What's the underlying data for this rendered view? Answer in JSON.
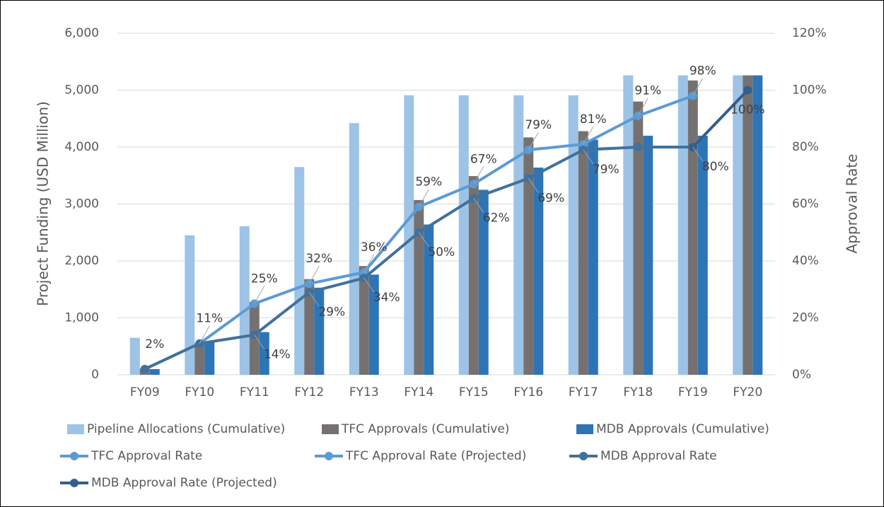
{
  "chart_data": {
    "type": "bar",
    "y_label": "Project Funding (USD Million)",
    "y2_label": "Approval Rate",
    "categories": [
      "FY09",
      "FY10",
      "FY11",
      "FY12",
      "FY13",
      "FY14",
      "FY15",
      "FY16",
      "FY17",
      "FY18",
      "FY19",
      "FY20"
    ],
    "ylim": [
      0,
      6000
    ],
    "yticks": [
      0,
      {
        "value": 1000,
        "label": "1,000"
      },
      {
        "value": 2000,
        "label": "2,000"
      },
      {
        "value": 3000,
        "label": "3,000"
      },
      {
        "value": 4000,
        "label": "4,000"
      },
      {
        "value": 5000,
        "label": "5,000"
      },
      {
        "value": 6000,
        "label": "6,000"
      }
    ],
    "y2lim": [
      0,
      120
    ],
    "y2ticks": [
      {
        "value": 0,
        "label": "0%"
      },
      {
        "value": 20,
        "label": "20%"
      },
      {
        "value": 40,
        "label": "40%"
      },
      {
        "value": 60,
        "label": "60%"
      },
      {
        "value": 80,
        "label": "80%"
      },
      {
        "value": 100,
        "label": "100%"
      },
      {
        "value": 120,
        "label": "120%"
      }
    ],
    "grid": true,
    "series": [
      {
        "name": "Pipeline Allocations (Cumulative)",
        "type": "bar",
        "color": "#9dc3e6",
        "values": [
          650,
          2450,
          2610,
          3650,
          4420,
          4910,
          4910,
          4910,
          4910,
          5260,
          5260,
          5260
        ]
      },
      {
        "name": "TFC Approvals (Cumulative)",
        "type": "bar",
        "color": "#767171",
        "values": [
          110,
          560,
          1280,
          1680,
          1910,
          3070,
          3490,
          4170,
          4280,
          4800,
          5170,
          5260
        ]
      },
      {
        "name": "MDB Approvals (Cumulative)",
        "type": "bar",
        "color": "#2e75b6",
        "values": [
          100,
          580,
          750,
          1530,
          1760,
          2640,
          3250,
          3640,
          4130,
          4200,
          4200,
          5260
        ]
      },
      {
        "name": "TFC Approval Rate",
        "type": "line",
        "axis": "y2",
        "color": "#5b9bd5",
        "values": [
          2,
          11,
          25,
          32,
          36,
          59,
          67,
          79,
          81,
          91,
          98,
          null
        ],
        "value_labels": [
          "2%",
          "11%",
          "25%",
          "32%",
          "36%",
          "59%",
          "67%",
          "79%",
          "81%",
          "91%",
          "98%",
          null
        ]
      },
      {
        "name": "TFC Approval Rate (Projected)",
        "type": "line",
        "axis": "y2",
        "color": "#5b9bd5",
        "values": [
          null,
          null,
          null,
          null,
          null,
          null,
          null,
          null,
          null,
          null,
          null,
          null
        ]
      },
      {
        "name": "MDB Approval Rate",
        "type": "line",
        "axis": "y2",
        "color": "#41719c",
        "values": [
          2,
          11,
          14,
          29,
          34,
          50,
          62,
          69,
          79,
          80,
          80,
          null
        ],
        "value_labels": [
          null,
          null,
          "14%",
          "29%",
          "34%",
          "50%",
          "62%",
          "69%",
          "79%",
          null,
          "80%",
          null
        ]
      },
      {
        "name": "MDB Approval Rate (Projected)",
        "type": "line",
        "axis": "y2",
        "color": "#355f8a",
        "values": [
          null,
          null,
          null,
          null,
          null,
          null,
          null,
          null,
          null,
          null,
          80,
          100
        ],
        "value_labels": [
          null,
          null,
          null,
          null,
          null,
          null,
          null,
          null,
          null,
          null,
          null,
          "100%"
        ]
      }
    ]
  }
}
